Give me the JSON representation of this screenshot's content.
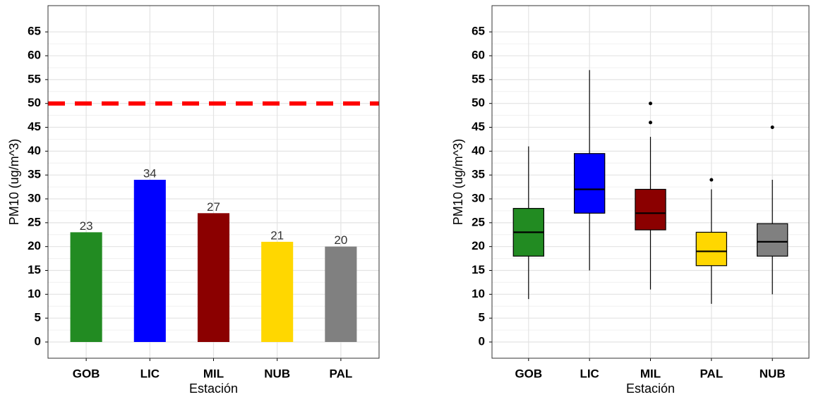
{
  "chart_data": [
    {
      "type": "bar",
      "x_label": "Estación",
      "y_label": "PM10 (ug/m^3)",
      "categories": [
        "GOB",
        "LIC",
        "MIL",
        "NUB",
        "PAL"
      ],
      "values": [
        23,
        34,
        27,
        21,
        20
      ],
      "colors": [
        "#228b22",
        "#0000ff",
        "#8b0000",
        "#ffd700",
        "#808080"
      ],
      "reference_line": {
        "value": 50,
        "color": "#ff0000"
      },
      "ylim": [
        -3.4,
        70.5
      ],
      "yticks": [
        0,
        5,
        10,
        15,
        20,
        25,
        30,
        35,
        40,
        45,
        50,
        55,
        60,
        65
      ],
      "grid": true
    },
    {
      "type": "box",
      "x_label": "Estación",
      "y_label": "PM10 (ug/m^3)",
      "categories": [
        "GOB",
        "LIC",
        "MIL",
        "PAL",
        "NUB"
      ],
      "boxes": [
        {
          "min": 9,
          "q1": 18,
          "median": 23,
          "q3": 28,
          "max": 41,
          "outliers": []
        },
        {
          "min": 15,
          "q1": 27,
          "median": 32,
          "q3": 39.5,
          "max": 57,
          "outliers": []
        },
        {
          "min": 11,
          "q1": 23.5,
          "median": 27,
          "q3": 32,
          "max": 43,
          "outliers": [
            46,
            50
          ]
        },
        {
          "min": 8,
          "q1": 16,
          "median": 19,
          "q3": 23,
          "max": 32,
          "outliers": [
            34
          ]
        },
        {
          "min": 10,
          "q1": 18,
          "median": 21,
          "q3": 24.8,
          "max": 34,
          "outliers": [
            45
          ]
        }
      ],
      "colors": [
        "#228b22",
        "#0000ff",
        "#8b0000",
        "#ffd700",
        "#808080"
      ],
      "ylim": [
        -3.4,
        70.5
      ],
      "yticks": [
        0,
        5,
        10,
        15,
        20,
        25,
        30,
        35,
        40,
        45,
        50,
        55,
        60,
        65
      ],
      "grid": true
    }
  ]
}
